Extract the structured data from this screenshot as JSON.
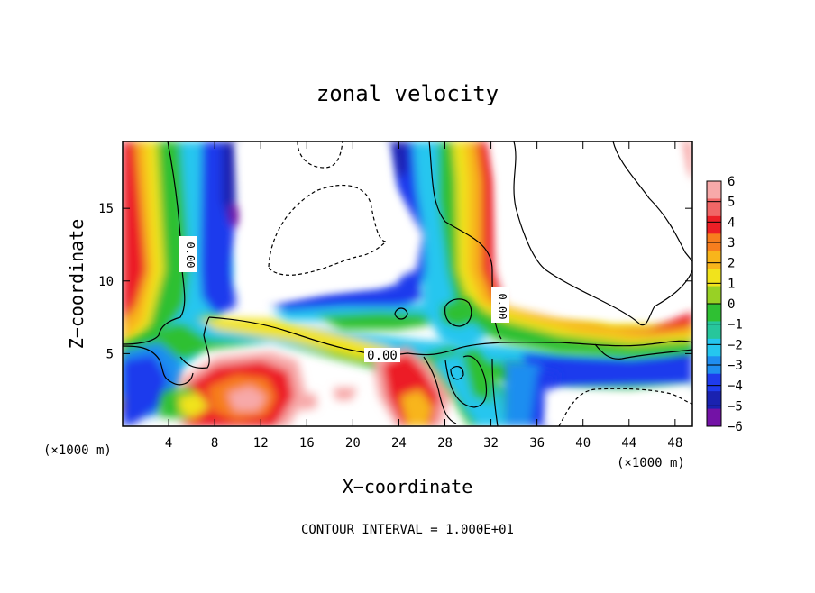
{
  "chart_data": {
    "type": "heatmap",
    "title": "zonal velocity",
    "xlabel": "X−coordinate",
    "ylabel": "Z−coordinate",
    "x_unit_left": "(×1000 m)",
    "x_unit_right": "(×1000 m)",
    "footer": "CONTOUR INTERVAL = 1.000E+01",
    "xlim": [
      0,
      49.5
    ],
    "ylim": [
      0,
      19.6
    ],
    "x_ticks": [
      4,
      8,
      12,
      16,
      20,
      24,
      28,
      32,
      36,
      40,
      44,
      48
    ],
    "y_ticks": [
      5,
      10,
      15
    ],
    "contour_labels": [
      {
        "text": "0.00",
        "x": 5.6,
        "z": 12.0,
        "rotate": 90
      },
      {
        "text": "0.00",
        "x": 33.0,
        "z": 8.5,
        "rotate": 90
      },
      {
        "text": "0.00",
        "x": 22.8,
        "z": 4.8,
        "rotate": 0
      }
    ],
    "colorbar": {
      "labels": [
        "6",
        "5",
        "4",
        "3",
        "2",
        "1",
        "0",
        "−1",
        "−2",
        "−3",
        "−4",
        "−5",
        "−6"
      ],
      "colors": [
        "#f7a9a9",
        "#f06666",
        "#ec1f26",
        "#f77e1e",
        "#f8b51b",
        "#f1e31c",
        "#98d125",
        "#2fc033",
        "#27c69b",
        "#25c6ef",
        "#1f8ef0",
        "#1f3bed",
        "#1a22b0",
        "#7312a6"
      ]
    }
  }
}
